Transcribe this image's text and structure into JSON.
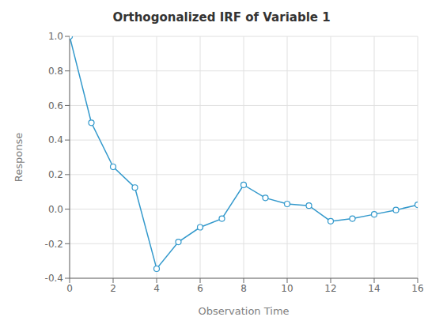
{
  "chart_data": {
    "type": "line",
    "title": "Orthogonalized IRF of Variable 1",
    "xlabel": "Observation Time",
    "ylabel": "Response",
    "x": [
      0,
      1,
      2,
      3,
      4,
      5,
      6,
      7,
      8,
      9,
      10,
      11,
      12,
      13,
      14,
      15,
      16
    ],
    "values": [
      1.0,
      0.5,
      0.245,
      0.125,
      -0.345,
      -0.19,
      -0.105,
      -0.055,
      0.14,
      0.065,
      0.03,
      0.02,
      -0.07,
      -0.055,
      -0.03,
      -0.005,
      0.025
    ],
    "color": "#3399CC",
    "marker": "circle",
    "xlim": [
      0,
      16
    ],
    "ylim": [
      -0.4,
      1.0
    ],
    "xticks": [
      0,
      2,
      4,
      6,
      8,
      10,
      12,
      14,
      16
    ],
    "yticks": [
      -0.4,
      -0.2,
      {
        "value": 0,
        "label": "0.0"
      },
      0.2,
      0.4,
      0.6,
      0.8,
      {
        "value": 1,
        "label": "1.0"
      }
    ],
    "grid": true
  }
}
